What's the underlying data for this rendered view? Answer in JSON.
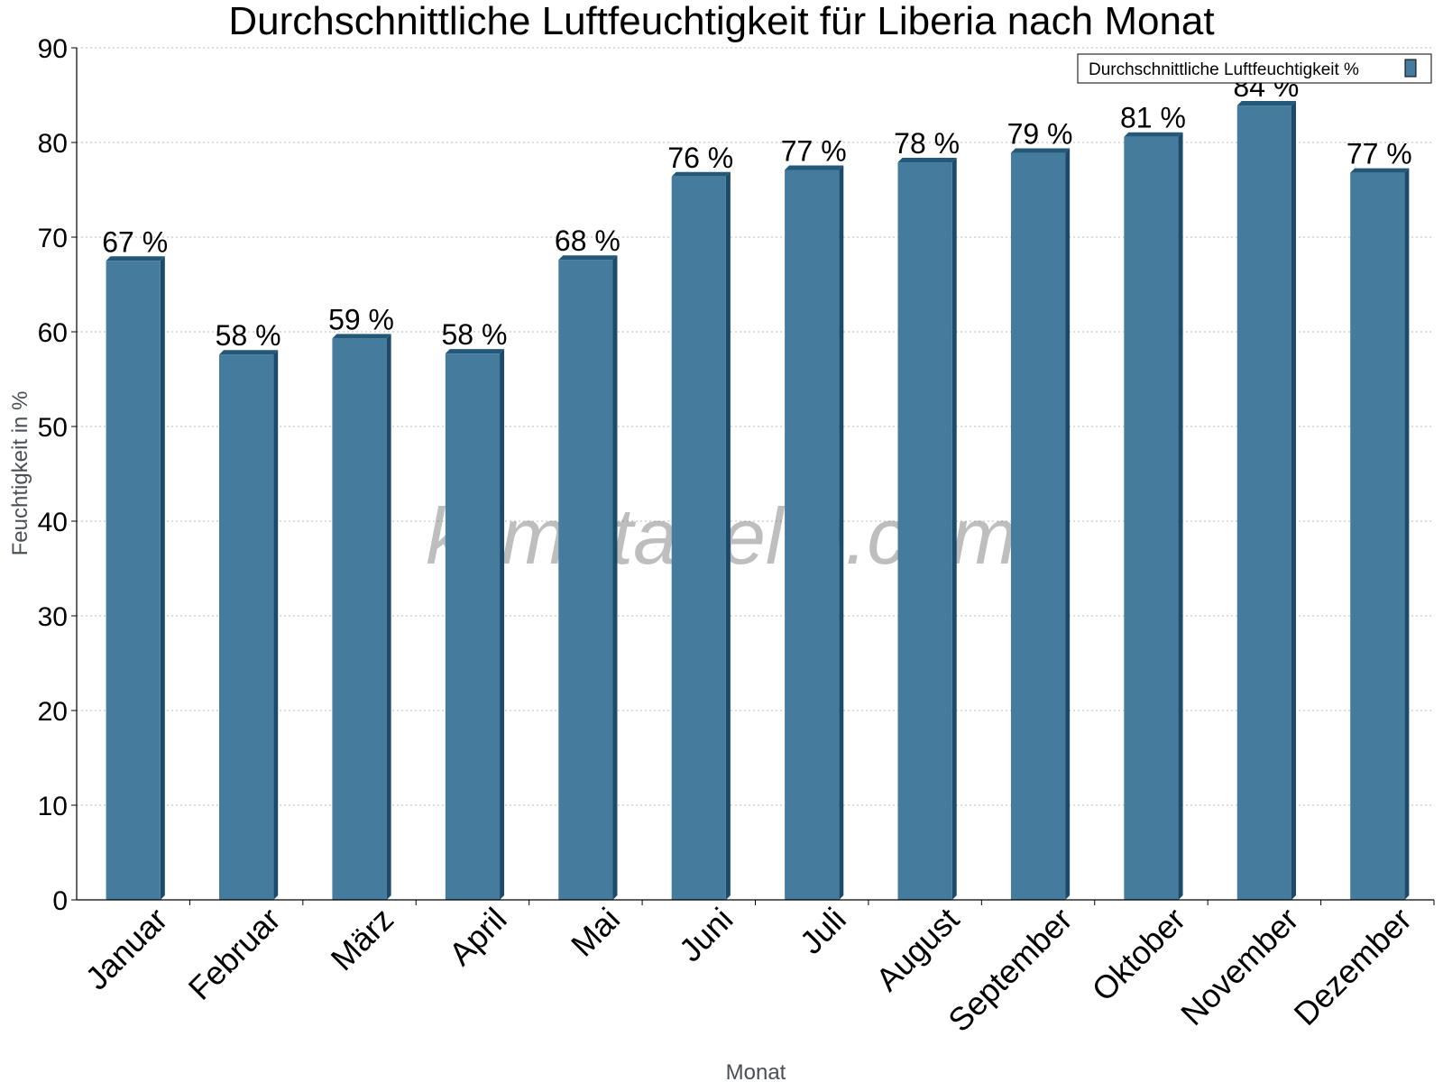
{
  "chart_data": {
    "type": "bar",
    "title": "Durchschnittliche Luftfeuchtigkeit für Liberia nach Monat",
    "xlabel": "Monat",
    "ylabel": "Feuchtigkeit in %",
    "ylim": [
      0,
      90
    ],
    "yticks": [
      "0",
      "10",
      "20",
      "30",
      "40",
      "50",
      "60",
      "70",
      "80",
      "90"
    ],
    "grid": true,
    "legend_position": "top-right",
    "categories": [
      "Januar",
      "Februar",
      "März",
      "April",
      "Mai",
      "Juni",
      "Juli",
      "August",
      "September",
      "Oktober",
      "November",
      "Dezember"
    ],
    "series": [
      {
        "name": "Durchschnittliche Luftfeuchtigkeit %",
        "values": [
          67.5,
          57.6,
          59.3,
          57.7,
          67.6,
          76.4,
          77.1,
          77.9,
          78.9,
          80.6,
          83.9,
          76.8
        ],
        "labels": [
          "67 %",
          "58 %",
          "59 %",
          "58 %",
          "68 %",
          "76 %",
          "77 %",
          "78 %",
          "79 %",
          "81 %",
          "84 %",
          "77 %"
        ]
      }
    ],
    "colors": {
      "bar": "#457b9d",
      "bar_side": "#1c4a6b",
      "bar_top": "#245878",
      "grid": "#bbbbbb"
    }
  },
  "watermark": "klimatabelle.com"
}
